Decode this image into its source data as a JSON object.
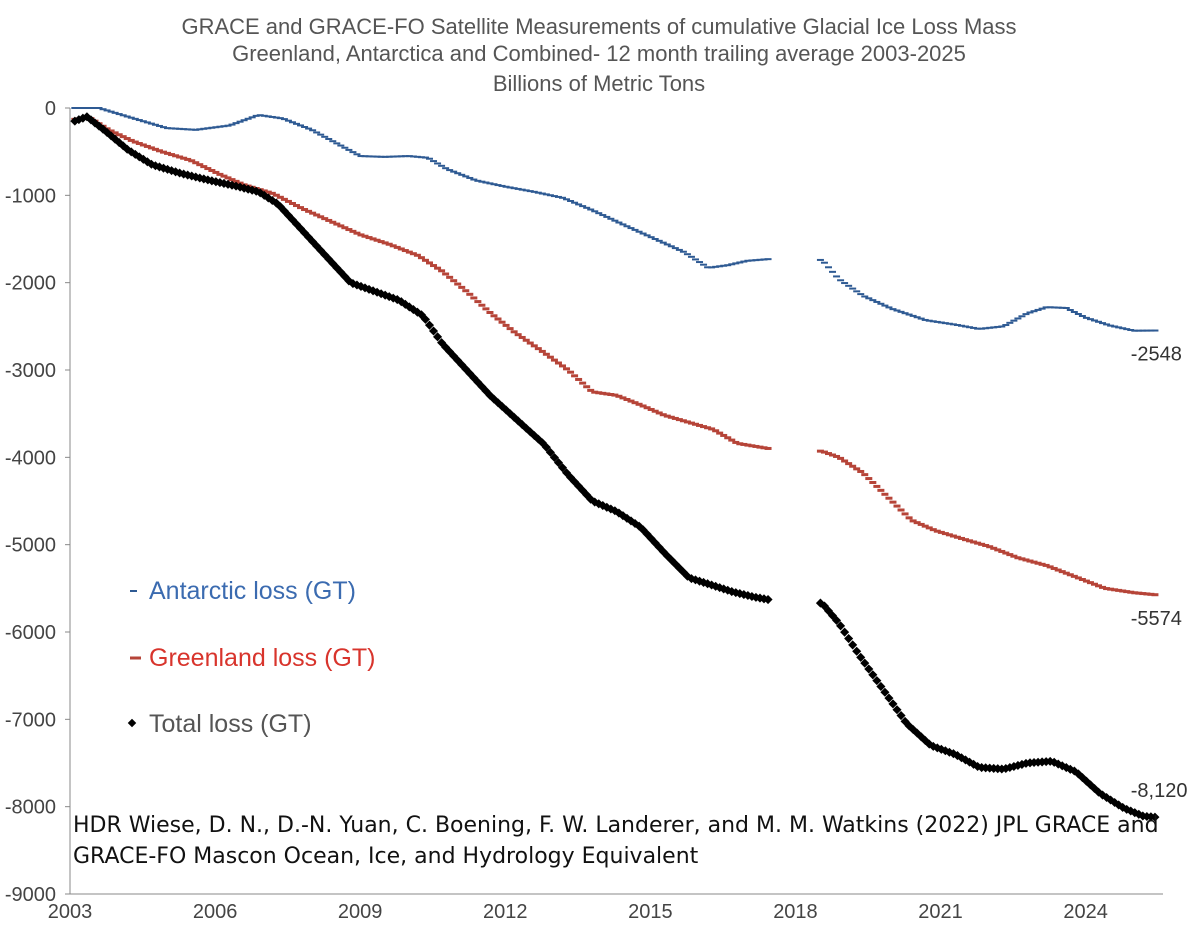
{
  "chart_data": {
    "type": "line",
    "title_lines": [
      "GRACE and GRACE-FO Satellite Measurements of cumulative Glacial Ice Loss Mass",
      "Greenland, Antarctica and Combined- 12 month trailing average 2003-2025",
      "Billions of Metric Tons"
    ],
    "xlabel": "",
    "ylabel": "",
    "xlim": [
      2003,
      2025.6
    ],
    "ylim": [
      -9000,
      0
    ],
    "x_ticks": [
      "2003",
      "2006",
      "2009",
      "2012",
      "2015",
      "2018",
      "2021",
      "2024"
    ],
    "x_tick_values": [
      2003,
      2006,
      2009,
      2012,
      2015,
      2018,
      2021,
      2024
    ],
    "y_ticks": [
      "0",
      "-1000",
      "-2000",
      "-3000",
      "-4000",
      "-5000",
      "-6000",
      "-7000",
      "-8000",
      "-9000"
    ],
    "y_tick_values": [
      0,
      -1000,
      -2000,
      -3000,
      -4000,
      -5000,
      -6000,
      -7000,
      -8000,
      -9000
    ],
    "gap": [
      2017.5,
      2018.5
    ],
    "grid": false,
    "legend_position": "left-middle",
    "series": [
      {
        "name": "Antarctic loss (GT)",
        "color": "#2e5a93",
        "marker": "dash",
        "end_label": "-2548",
        "points": [
          [
            2003.1,
            0
          ],
          [
            2003.6,
            0
          ],
          [
            2004.2,
            -100
          ],
          [
            2005.0,
            -230
          ],
          [
            2005.6,
            -250
          ],
          [
            2006.3,
            -200
          ],
          [
            2006.9,
            -80
          ],
          [
            2007.4,
            -120
          ],
          [
            2008.0,
            -250
          ],
          [
            2008.5,
            -400
          ],
          [
            2009.0,
            -550
          ],
          [
            2009.5,
            -560
          ],
          [
            2010.0,
            -550
          ],
          [
            2010.4,
            -570
          ],
          [
            2010.8,
            -700
          ],
          [
            2011.4,
            -830
          ],
          [
            2012.0,
            -900
          ],
          [
            2012.6,
            -960
          ],
          [
            2013.2,
            -1030
          ],
          [
            2013.8,
            -1170
          ],
          [
            2014.5,
            -1350
          ],
          [
            2015.1,
            -1500
          ],
          [
            2015.7,
            -1650
          ],
          [
            2016.2,
            -1830
          ],
          [
            2016.6,
            -1800
          ],
          [
            2017.0,
            -1750
          ],
          [
            2017.45,
            -1730
          ],
          [
            2018.55,
            -1740
          ],
          [
            2018.9,
            -1960
          ],
          [
            2019.4,
            -2150
          ],
          [
            2020.0,
            -2300
          ],
          [
            2020.7,
            -2430
          ],
          [
            2021.3,
            -2480
          ],
          [
            2021.8,
            -2530
          ],
          [
            2022.3,
            -2500
          ],
          [
            2022.8,
            -2350
          ],
          [
            2023.2,
            -2280
          ],
          [
            2023.6,
            -2290
          ],
          [
            2024.0,
            -2400
          ],
          [
            2024.5,
            -2490
          ],
          [
            2025.0,
            -2550
          ],
          [
            2025.45,
            -2548
          ]
        ]
      },
      {
        "name": "Greenland loss (GT)",
        "color": "#b64438",
        "marker": "dash",
        "end_label": "-5574",
        "points": [
          [
            2003.1,
            -130
          ],
          [
            2003.4,
            -110
          ],
          [
            2003.8,
            -250
          ],
          [
            2004.3,
            -380
          ],
          [
            2004.9,
            -500
          ],
          [
            2005.5,
            -600
          ],
          [
            2006.1,
            -760
          ],
          [
            2006.6,
            -880
          ],
          [
            2007.2,
            -980
          ],
          [
            2007.8,
            -1150
          ],
          [
            2008.4,
            -1300
          ],
          [
            2009.0,
            -1450
          ],
          [
            2009.6,
            -1560
          ],
          [
            2010.2,
            -1690
          ],
          [
            2010.7,
            -1870
          ],
          [
            2011.2,
            -2100
          ],
          [
            2011.7,
            -2350
          ],
          [
            2012.2,
            -2570
          ],
          [
            2012.8,
            -2800
          ],
          [
            2013.3,
            -3000
          ],
          [
            2013.8,
            -3250
          ],
          [
            2014.3,
            -3290
          ],
          [
            2014.8,
            -3400
          ],
          [
            2015.3,
            -3520
          ],
          [
            2015.8,
            -3600
          ],
          [
            2016.3,
            -3680
          ],
          [
            2016.8,
            -3840
          ],
          [
            2017.45,
            -3900
          ],
          [
            2018.55,
            -3930
          ],
          [
            2018.9,
            -4000
          ],
          [
            2019.4,
            -4180
          ],
          [
            2019.9,
            -4450
          ],
          [
            2020.4,
            -4720
          ],
          [
            2020.9,
            -4840
          ],
          [
            2021.5,
            -4940
          ],
          [
            2022.0,
            -5020
          ],
          [
            2022.6,
            -5150
          ],
          [
            2023.2,
            -5240
          ],
          [
            2023.8,
            -5370
          ],
          [
            2024.4,
            -5500
          ],
          [
            2025.0,
            -5550
          ],
          [
            2025.45,
            -5574
          ]
        ]
      },
      {
        "name": "Total loss (GT)",
        "color": "#000000",
        "marker": "diamond",
        "end_label": "-8,120",
        "points": [
          [
            2003.1,
            -150
          ],
          [
            2003.35,
            -100
          ],
          [
            2003.7,
            -250
          ],
          [
            2004.2,
            -480
          ],
          [
            2004.7,
            -650
          ],
          [
            2005.3,
            -750
          ],
          [
            2005.9,
            -830
          ],
          [
            2006.4,
            -890
          ],
          [
            2006.9,
            -960
          ],
          [
            2007.3,
            -1100
          ],
          [
            2007.8,
            -1400
          ],
          [
            2008.3,
            -1700
          ],
          [
            2008.8,
            -2000
          ],
          [
            2009.3,
            -2100
          ],
          [
            2009.8,
            -2200
          ],
          [
            2010.3,
            -2380
          ],
          [
            2010.7,
            -2700
          ],
          [
            2011.2,
            -3000
          ],
          [
            2011.7,
            -3300
          ],
          [
            2012.2,
            -3550
          ],
          [
            2012.8,
            -3850
          ],
          [
            2013.3,
            -4200
          ],
          [
            2013.8,
            -4500
          ],
          [
            2014.3,
            -4620
          ],
          [
            2014.8,
            -4800
          ],
          [
            2015.3,
            -5100
          ],
          [
            2015.8,
            -5380
          ],
          [
            2016.2,
            -5450
          ],
          [
            2016.7,
            -5540
          ],
          [
            2017.15,
            -5600
          ],
          [
            2017.45,
            -5630
          ],
          [
            2018.55,
            -5670
          ],
          [
            2018.9,
            -5900
          ],
          [
            2019.3,
            -6250
          ],
          [
            2019.8,
            -6650
          ],
          [
            2020.3,
            -7050
          ],
          [
            2020.8,
            -7300
          ],
          [
            2021.3,
            -7400
          ],
          [
            2021.8,
            -7550
          ],
          [
            2022.3,
            -7570
          ],
          [
            2022.8,
            -7500
          ],
          [
            2023.3,
            -7480
          ],
          [
            2023.8,
            -7600
          ],
          [
            2024.3,
            -7850
          ],
          [
            2024.8,
            -8020
          ],
          [
            2025.2,
            -8110
          ],
          [
            2025.45,
            -8120
          ]
        ]
      }
    ]
  },
  "source_text": "HDR Wiese, D. N., D.-N. Yuan, C. Boening, F. W. Landerer, and M. M. Watkins (2022) JPL GRACE and GRACE-FO Mascon Ocean, Ice, and Hydrology Equivalent"
}
